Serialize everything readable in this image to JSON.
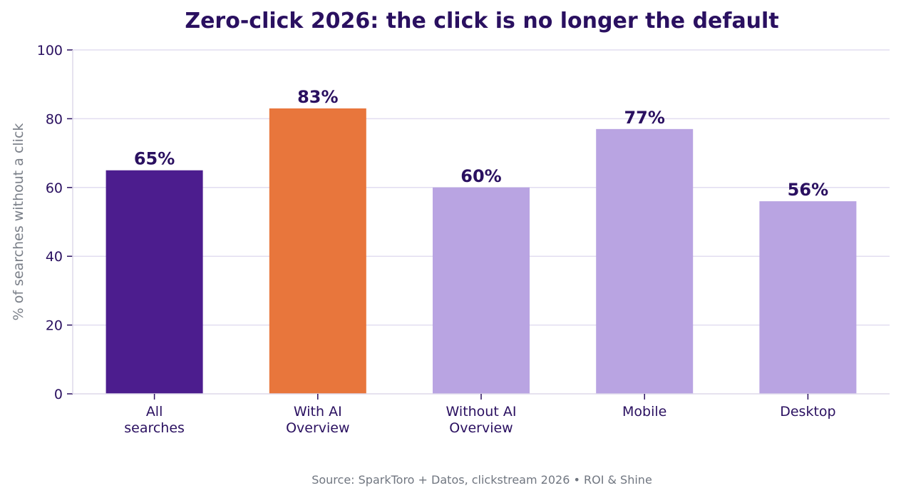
{
  "chart_data": {
    "type": "bar",
    "title": "Zero-click 2026: the click is no longer the default",
    "ylabel": "% of searches without a click",
    "xlabel": "",
    "ylim": [
      0,
      100
    ],
    "yticks": [
      0,
      20,
      40,
      60,
      80,
      100
    ],
    "categories": [
      [
        "All",
        "searches"
      ],
      [
        "With AI",
        "Overview"
      ],
      [
        "Without AI",
        "Overview"
      ],
      [
        "Mobile"
      ],
      [
        "Desktop"
      ]
    ],
    "values": [
      65,
      83,
      60,
      77,
      56
    ],
    "value_labels": [
      "65%",
      "83%",
      "60%",
      "77%",
      "56%"
    ],
    "colors": [
      "#4c1d8e",
      "#e8763c",
      "#b9a4e2",
      "#b9a4e2",
      "#b9a4e2"
    ],
    "grid": true,
    "legend": "none"
  },
  "source": "Source: SparkToro + Datos, clickstream 2026 • ROI & Shine"
}
